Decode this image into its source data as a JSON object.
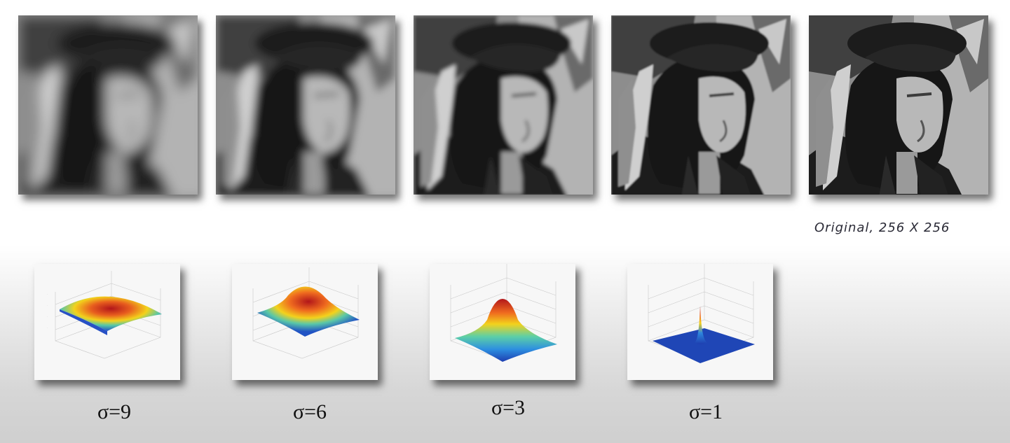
{
  "caption": "Original, 256 X 256",
  "blur_sigmas": [
    9,
    6,
    3,
    1
  ],
  "plots": [
    {
      "label": "σ=9"
    },
    {
      "label": "σ=6"
    },
    {
      "label": "σ=3"
    },
    {
      "label": "σ=1"
    }
  ],
  "colors": {
    "surface_peak": "#c0191b",
    "surface_mid": "#f2d11c",
    "surface_low": "#1e40b5",
    "background_light": "#ffffff",
    "background_dark": "#cfcfcf"
  }
}
